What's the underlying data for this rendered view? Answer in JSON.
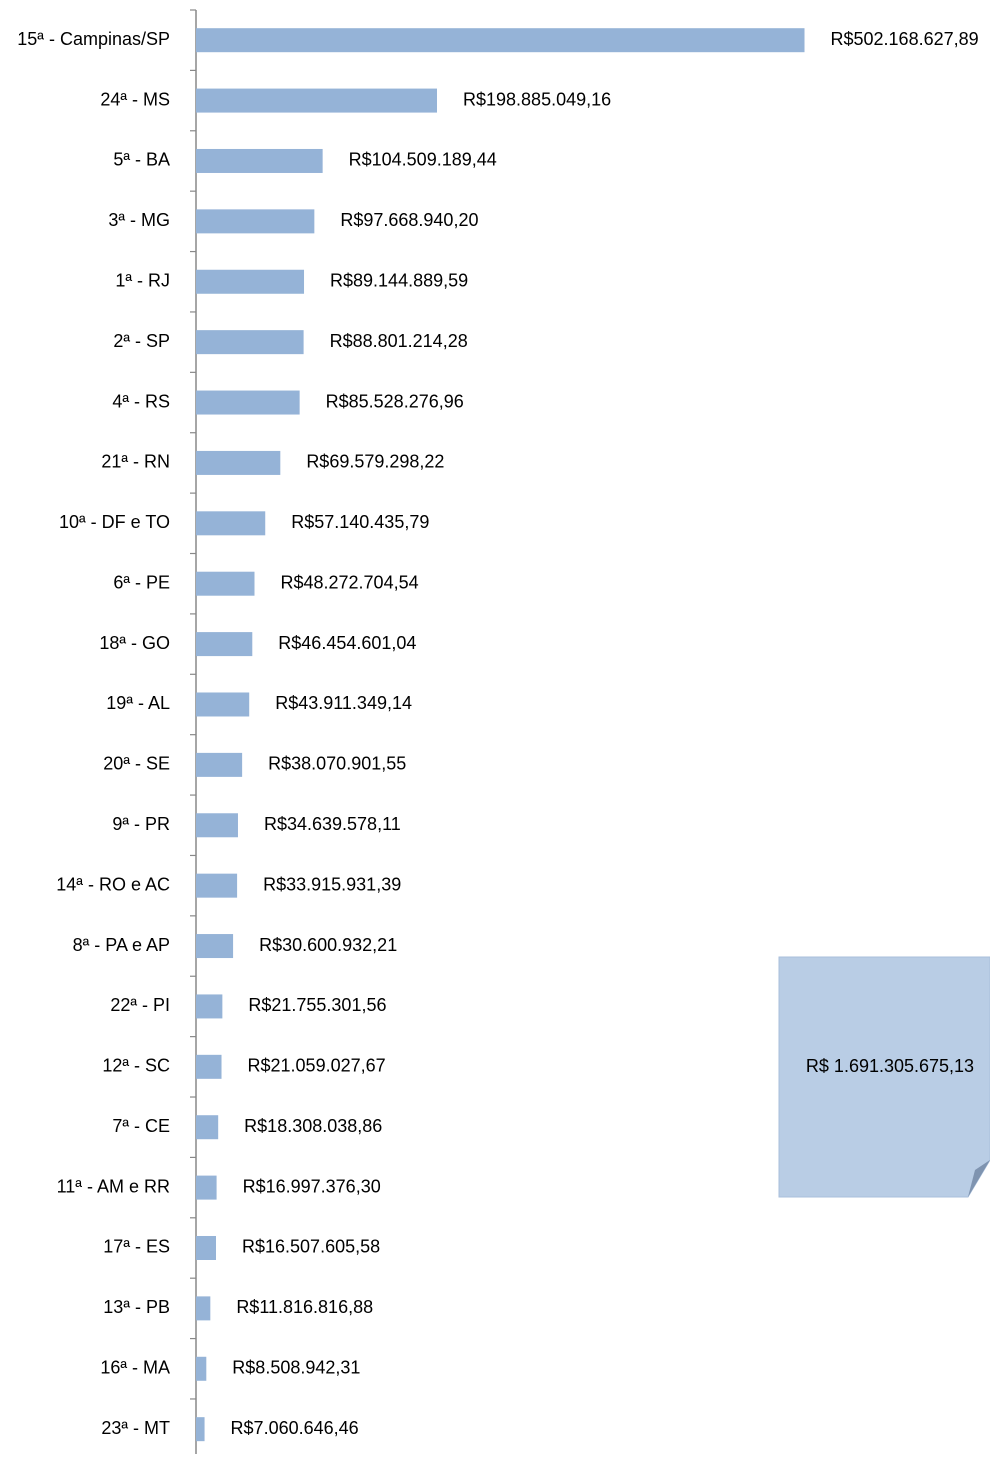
{
  "chart_data": {
    "type": "bar",
    "orientation": "horizontal",
    "color": "#95b3d7",
    "categories": [
      "15ª - Campinas/SP",
      "24ª - MS",
      "5ª - BA",
      "3ª - MG",
      "1ª - RJ",
      "2ª - SP",
      "4ª - RS",
      "21ª - RN",
      "10ª - DF e TO",
      "6ª - PE",
      "18ª - GO",
      "19ª - AL",
      "20ª - SE",
      "9ª - PR",
      "14ª - RO e AC",
      "8ª - PA e AP",
      "22ª - PI",
      "12ª - SC",
      "7ª - CE",
      "11ª - AM e RR",
      "17ª - ES",
      "13ª - PB",
      "16ª - MA",
      "23ª - MT"
    ],
    "values": [
      502168627.89,
      198885049.16,
      104509189.44,
      97668940.2,
      89144889.59,
      88801214.28,
      85528276.96,
      69579298.22,
      57140435.79,
      48272704.54,
      46454601.04,
      43911349.14,
      38070901.55,
      34639578.11,
      33915931.39,
      30600932.21,
      21755301.56,
      21059027.67,
      18308038.86,
      16997376.3,
      16507605.58,
      11816816.88,
      8508942.31,
      7060646.46
    ],
    "value_labels": [
      "R$502.168.627,89",
      "R$198.885.049,16",
      "R$104.509.189,44",
      "R$97.668.940,20",
      "R$89.144.889,59",
      "R$88.801.214,28",
      "R$85.528.276,96",
      "R$69.579.298,22",
      "R$57.140.435,79",
      "R$48.272.704,54",
      "R$46.454.601,04",
      "R$43.911.349,14",
      "R$38.070.901,55",
      "R$34.639.578,11",
      "R$33.915.931,39",
      "R$30.600.932,21",
      "R$21.755.301,56",
      "R$21.059.027,67",
      "R$18.308.038,86",
      "R$16.997.376,30",
      "R$16.507.605,58",
      "R$11.816.816,88",
      "R$8.508.942,31",
      "R$7.060.646,46"
    ],
    "xlim": [
      0,
      510000000
    ],
    "annotations": [
      "R$ 1.691.305.675,13"
    ]
  }
}
